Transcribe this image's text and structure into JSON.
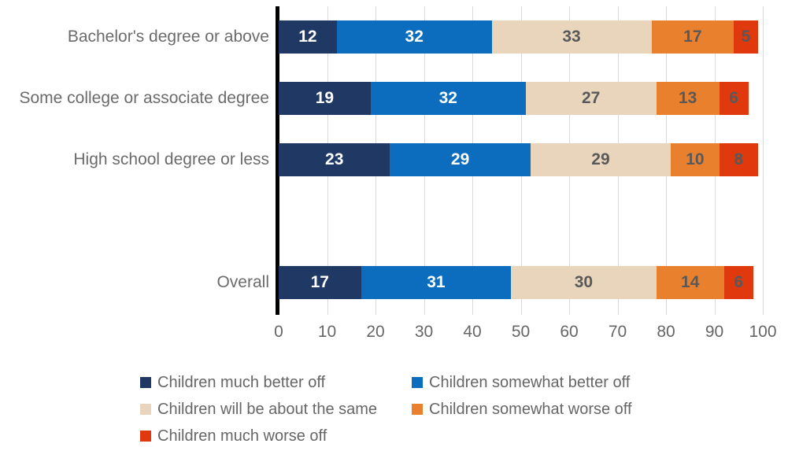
{
  "chart_data": {
    "type": "bar",
    "orientation": "horizontal",
    "stacked": true,
    "title": "",
    "xlabel": "",
    "ylabel": "",
    "xlim": [
      0,
      100
    ],
    "x_ticks": [
      0,
      10,
      20,
      30,
      40,
      50,
      60,
      70,
      80,
      90,
      100
    ],
    "grid": true,
    "legend_position": "bottom",
    "categories": [
      "Bachelor's degree or above",
      "Some college or associate degree",
      "High school degree or less",
      "Overall"
    ],
    "series": [
      {
        "name": "Children much better off",
        "color": "#1F3864",
        "label_color": "#ffffff",
        "values": [
          12,
          19,
          23,
          17
        ]
      },
      {
        "name": "Children somewhat better off",
        "color": "#0C6CBE",
        "label_color": "#ffffff",
        "values": [
          32,
          32,
          29,
          31
        ]
      },
      {
        "name": "Children will be about the same",
        "color": "#E9D5BC",
        "label_color": "#595959",
        "values": [
          33,
          27,
          29,
          30
        ]
      },
      {
        "name": "Children somewhat worse off",
        "color": "#E8802E",
        "label_color": "#595959",
        "values": [
          17,
          13,
          10,
          14
        ]
      },
      {
        "name": "Children much worse off",
        "color": "#E0390E",
        "label_color": "#595959",
        "values": [
          5,
          6,
          8,
          6
        ]
      }
    ]
  },
  "style": {
    "gridline_color": "#d9d9d9",
    "axis_color": "#000000",
    "text_gray": "#666666"
  },
  "layout_note": "rows for categories at indexes 0,1,2 then one blank row, then Overall"
}
